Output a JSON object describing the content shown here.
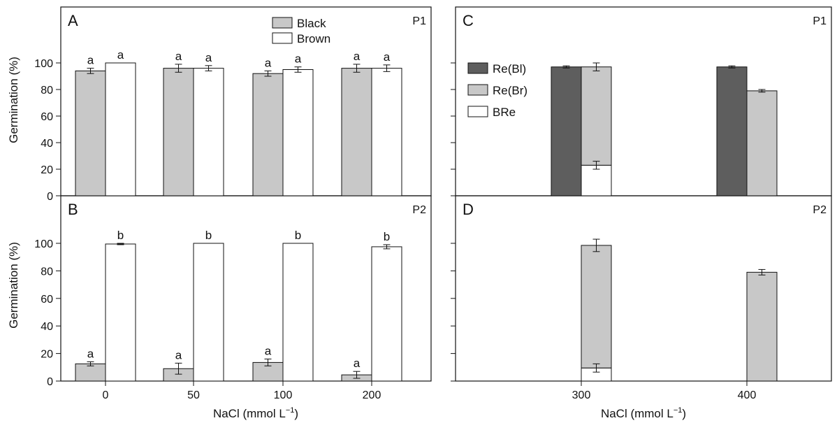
{
  "figure": {
    "ylabel": "Germination (%)",
    "xlabel_prefix": "NaCl (mmol L",
    "xlabel_sup": "−1",
    "xlabel_suffix": ")",
    "colors": {
      "black_seed": "#c8c8c8",
      "brown_seed": "#ffffff",
      "re_bl": "#5e5e5e",
      "re_br": "#c8c8c8",
      "bre": "#ffffff",
      "axis": "#111111"
    }
  },
  "chart_data": [
    {
      "panel": "A",
      "tag": "P1",
      "type": "bar",
      "categories": [
        "0",
        "50",
        "100",
        "200"
      ],
      "ylim": [
        0,
        100
      ],
      "yticks": [
        "0",
        "20",
        "40",
        "60",
        "80",
        "100"
      ],
      "legend": [
        "Black",
        "Brown"
      ],
      "legend_position": "top-center",
      "series": [
        {
          "name": "Black",
          "values": [
            94,
            96,
            92,
            96
          ],
          "errors": [
            2,
            3,
            2,
            3
          ],
          "letters": [
            "a",
            "a",
            "a",
            "a"
          ]
        },
        {
          "name": "Brown",
          "values": [
            100,
            96,
            95,
            96
          ],
          "errors": [
            0,
            2,
            2,
            2.5
          ],
          "letters": [
            "a",
            "a",
            "a",
            "a"
          ]
        }
      ]
    },
    {
      "panel": "B",
      "tag": "P2",
      "type": "bar",
      "categories": [
        "0",
        "50",
        "100",
        "200"
      ],
      "ylim": [
        0,
        100
      ],
      "yticks": [
        "0",
        "20",
        "40",
        "60",
        "80",
        "100"
      ],
      "series": [
        {
          "name": "Black",
          "values": [
            12.5,
            9,
            13.5,
            4.5
          ],
          "errors": [
            1.5,
            4,
            2.5,
            2.5
          ],
          "letters": [
            "a",
            "a",
            "a",
            "a"
          ]
        },
        {
          "name": "Brown",
          "values": [
            99.5,
            100,
            100,
            97.5
          ],
          "errors": [
            0.5,
            0,
            0,
            1.5
          ],
          "letters": [
            "b",
            "b",
            "b",
            "b"
          ]
        }
      ]
    },
    {
      "panel": "C",
      "tag": "P1",
      "type": "bar",
      "categories": [
        "300",
        "400"
      ],
      "ylim": [
        0,
        100
      ],
      "legend": [
        "Re(Bl)",
        "Re(Br)",
        "BRe"
      ],
      "legend_position": "top-left",
      "series": [
        {
          "name": "Re(Bl)",
          "values": [
            97,
            97
          ],
          "errors": [
            0.8,
            0.8
          ]
        },
        {
          "name": "Re(Br)",
          "values": [
            97,
            79
          ],
          "errors": [
            3,
            1
          ]
        },
        {
          "name": "BRe",
          "values": [
            23,
            null
          ],
          "errors": [
            3,
            null
          ]
        }
      ]
    },
    {
      "panel": "D",
      "tag": "P2",
      "type": "bar",
      "categories": [
        "300",
        "400"
      ],
      "ylim": [
        0,
        100
      ],
      "series": [
        {
          "name": "Re(Br)",
          "values": [
            98.5,
            79
          ],
          "errors": [
            4.5,
            2
          ]
        },
        {
          "name": "BRe",
          "values": [
            9.5,
            null
          ],
          "errors": [
            3,
            null
          ]
        }
      ]
    }
  ]
}
